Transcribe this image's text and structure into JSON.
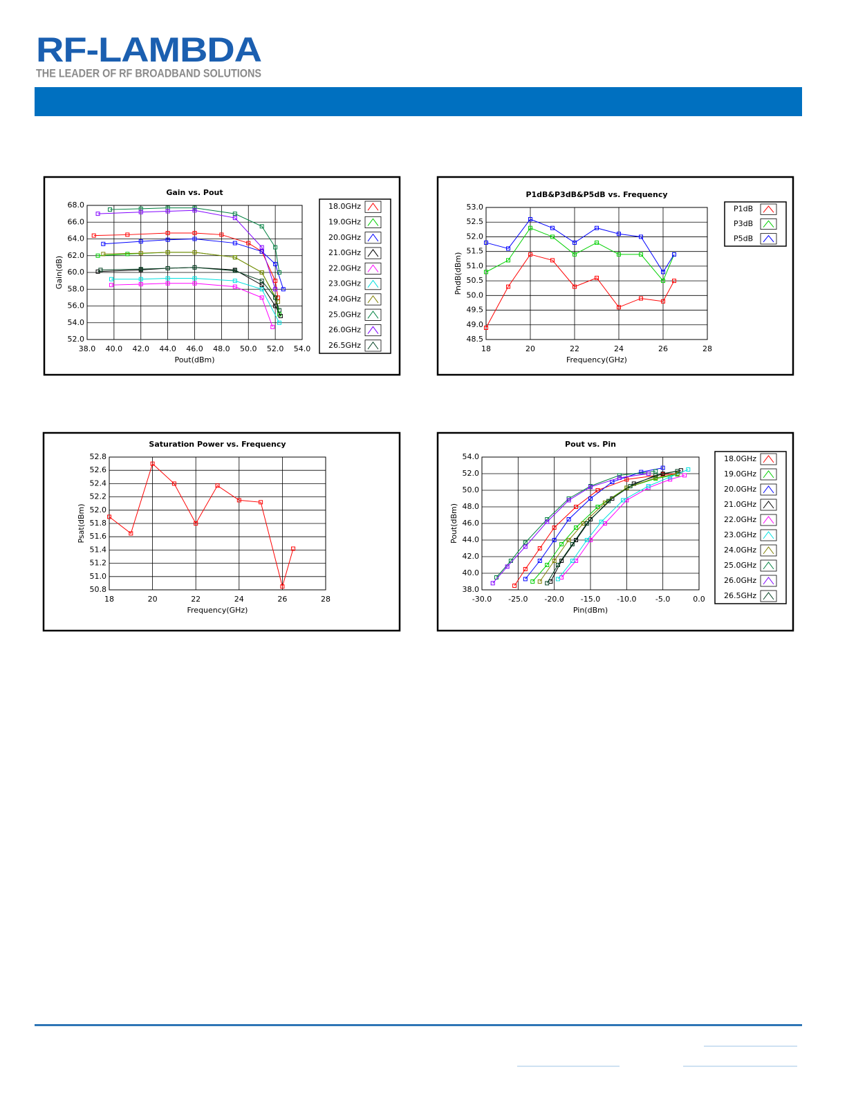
{
  "header": {
    "logo": "RF-LAMBDA",
    "tagline": "THE LEADER OF RF BROADBAND SOLUTIONS"
  },
  "chart_data": [
    {
      "type": "line",
      "title": "Gain vs. Pout",
      "xlabel": "Pout(dBm)",
      "ylabel": "Gain(dB)",
      "xlim": [
        38,
        54
      ],
      "xticks": [
        {
          "value": 38,
          "label": "38.0"
        },
        {
          "value": 40,
          "label": "40.0"
        },
        {
          "value": 42,
          "label": "42.0"
        },
        {
          "value": 44,
          "label": "44.0"
        },
        {
          "value": 46,
          "label": "46.0"
        },
        {
          "value": 48,
          "label": "48.0"
        },
        {
          "value": 50,
          "label": "50.0"
        },
        {
          "value": 52,
          "label": "52.0"
        },
        {
          "value": 54,
          "label": "54.0"
        }
      ],
      "ylim": [
        52,
        68
      ],
      "yticks": [
        {
          "value": 52,
          "label": "52.0"
        },
        {
          "value": 54,
          "label": "54.0"
        },
        {
          "value": 56,
          "label": "56.0"
        },
        {
          "value": 58,
          "label": "58.0"
        },
        {
          "value": 60,
          "label": "60.0"
        },
        {
          "value": 62,
          "label": "62.0"
        },
        {
          "value": 64,
          "label": "64.0"
        },
        {
          "value": 66,
          "label": "66.0"
        },
        {
          "value": 68,
          "label": "68.0"
        }
      ],
      "grid": true,
      "series": [
        {
          "name": "18.0GHz",
          "color": "#ff0000",
          "x": [
            38.5,
            41,
            44,
            46,
            48,
            50,
            51,
            52,
            52.2
          ],
          "values": [
            64.4,
            64.5,
            64.7,
            64.7,
            64.5,
            63.5,
            62.5,
            59,
            57
          ]
        },
        {
          "name": "19.0GHz",
          "color": "#00d000",
          "x": [
            38.8,
            41,
            44,
            46,
            49,
            51,
            52,
            52.3
          ],
          "values": [
            62.0,
            62.2,
            62.4,
            62.4,
            61.8,
            60,
            57,
            55
          ]
        },
        {
          "name": "20.0GHz",
          "color": "#0000ff",
          "x": [
            39.2,
            42,
            44,
            46,
            49,
            51,
            52,
            52.6
          ],
          "values": [
            63.4,
            63.7,
            63.9,
            64.0,
            63.5,
            62.5,
            61,
            58
          ]
        },
        {
          "name": "21.0GHz",
          "color": "#000000",
          "x": [
            38.8,
            42,
            44,
            46,
            49,
            51,
            52,
            52.4
          ],
          "values": [
            60.1,
            60.3,
            60.5,
            60.6,
            60.3,
            58.5,
            56,
            54.8
          ]
        },
        {
          "name": "22.0GHz",
          "color": "#ff00ff",
          "x": [
            39.8,
            42,
            44,
            46,
            49,
            51,
            51.8
          ],
          "values": [
            58.5,
            58.6,
            58.7,
            58.7,
            58.3,
            57,
            53.5
          ]
        },
        {
          "name": "23.0GHz",
          "color": "#00e0e0",
          "x": [
            39.8,
            42,
            44,
            46,
            49,
            51,
            52.3
          ],
          "values": [
            59.2,
            59.2,
            59.3,
            59.3,
            59,
            58,
            54
          ]
        },
        {
          "name": "24.0GHz",
          "color": "#808000",
          "x": [
            39.2,
            42,
            44,
            46,
            49,
            51,
            52.2
          ],
          "values": [
            62.2,
            62.3,
            62.4,
            62.4,
            61.8,
            60,
            56.5
          ]
        },
        {
          "name": "25.0GHz",
          "color": "#008040",
          "x": [
            39.7,
            42,
            44,
            46,
            49,
            51,
            52,
            52.3
          ],
          "values": [
            67.5,
            67.6,
            67.7,
            67.7,
            67.0,
            65.5,
            63,
            60
          ]
        },
        {
          "name": "26.0GHz",
          "color": "#8000ff",
          "x": [
            38.8,
            42,
            44,
            46,
            49,
            51,
            52
          ],
          "values": [
            67.0,
            67.2,
            67.3,
            67.4,
            66.5,
            63,
            58
          ]
        },
        {
          "name": "26.5GHz",
          "color": "#004020",
          "x": [
            39,
            42,
            44,
            46,
            49,
            51,
            52,
            52.3
          ],
          "values": [
            60.3,
            60.4,
            60.5,
            60.6,
            60.2,
            59,
            57,
            55.5
          ]
        }
      ]
    },
    {
      "type": "line",
      "title": "P1dB&P3dB&P5dB vs. Frequency",
      "xlabel": "Frequency(GHz)",
      "ylabel": "PndB(dBm)",
      "x": [
        18,
        19,
        20,
        21,
        22,
        23,
        24,
        25,
        26,
        26.5
      ],
      "xlim": [
        18,
        28
      ],
      "xticks": [
        18,
        20,
        22,
        24,
        26,
        28
      ],
      "ylim": [
        48.5,
        53
      ],
      "yticks": [
        48.5,
        {
          "value": 49,
          "label": "49.0"
        },
        49.5,
        {
          "value": 50,
          "label": "50.0"
        },
        50.5,
        {
          "value": 51,
          "label": "51.0"
        },
        51.5,
        {
          "value": 52,
          "label": "52.0"
        },
        52.5,
        {
          "value": 53,
          "label": "53.0"
        }
      ],
      "grid": true,
      "series": [
        {
          "name": "P1dB",
          "color": "#ff0000",
          "values": [
            48.9,
            50.3,
            51.4,
            51.2,
            50.3,
            50.6,
            49.6,
            49.9,
            49.8,
            50.5
          ]
        },
        {
          "name": "P3dB",
          "color": "#00d000",
          "values": [
            50.8,
            51.2,
            52.3,
            52.0,
            51.4,
            51.8,
            51.4,
            51.4,
            50.5,
            51.4
          ]
        },
        {
          "name": "P5dB",
          "color": "#0000ff",
          "values": [
            51.8,
            51.6,
            52.6,
            52.3,
            51.8,
            52.3,
            52.1,
            52.0,
            50.8,
            51.4
          ]
        }
      ]
    },
    {
      "type": "line",
      "title": "Saturation Power vs. Frequency",
      "xlabel": "Frequency(GHz)",
      "ylabel": "Psat(dBm)",
      "x": [
        18,
        19,
        20,
        21,
        22,
        23,
        24,
        25,
        26,
        26.5
      ],
      "xlim": [
        18,
        28
      ],
      "xticks": [
        18,
        20,
        22,
        24,
        26,
        28
      ],
      "ylim": [
        50.8,
        52.8
      ],
      "yticks": [
        50.8,
        {
          "value": 51,
          "label": "51.0"
        },
        51.2,
        51.4,
        51.6,
        51.8,
        {
          "value": 52,
          "label": "52.0"
        },
        52.2,
        52.4,
        52.6,
        52.8
      ],
      "grid": true,
      "color": "#ff0000",
      "values": [
        51.9,
        51.65,
        52.7,
        52.4,
        51.8,
        52.37,
        52.15,
        52.12,
        50.85,
        51.42
      ]
    },
    {
      "type": "line",
      "title": "Pout vs. Pin",
      "xlabel": "Pin(dBm)",
      "ylabel": "Pout(dBm)",
      "xlim": [
        -30,
        0
      ],
      "xticks": [
        {
          "value": -30,
          "label": "-30.0"
        },
        {
          "value": -25,
          "label": "-25.0"
        },
        {
          "value": -20,
          "label": "-20.0"
        },
        {
          "value": -15,
          "label": "-15.0"
        },
        {
          "value": -10,
          "label": "-10.0"
        },
        {
          "value": -5,
          "label": "-5.0"
        },
        {
          "value": 0,
          "label": "0.0"
        }
      ],
      "ylim": [
        38,
        54
      ],
      "yticks": [
        {
          "value": 38,
          "label": "38.0"
        },
        {
          "value": 40,
          "label": "40.0"
        },
        {
          "value": 42,
          "label": "42.0"
        },
        {
          "value": 44,
          "label": "44.0"
        },
        {
          "value": 46,
          "label": "46.0"
        },
        {
          "value": 48,
          "label": "48.0"
        },
        {
          "value": 50,
          "label": "50.0"
        },
        {
          "value": 52,
          "label": "52.0"
        },
        {
          "value": 54,
          "label": "54.0"
        }
      ],
      "grid": true,
      "series": [
        {
          "name": "18.0GHz",
          "color": "#ff0000",
          "x": [
            -25.5,
            -24,
            -22,
            -20,
            -17,
            -14,
            -10,
            -5,
            -3
          ],
          "values": [
            38.5,
            40.5,
            43,
            45.5,
            48,
            50,
            51.3,
            51.9,
            52.0
          ]
        },
        {
          "name": "19.0GHz",
          "color": "#00d000",
          "x": [
            -23,
            -21,
            -19,
            -17,
            -14,
            -10,
            -6,
            -3
          ],
          "values": [
            39,
            41,
            43.5,
            45.5,
            48,
            50.3,
            51.4,
            51.9
          ]
        },
        {
          "name": "20.0GHz",
          "color": "#0000ff",
          "x": [
            -24,
            -22,
            -20,
            -18,
            -15,
            -12,
            -8,
            -5
          ],
          "values": [
            39.3,
            41.5,
            44,
            46.5,
            49,
            51,
            52.2,
            52.7
          ]
        },
        {
          "name": "21.0GHz",
          "color": "#000000",
          "x": [
            -20.5,
            -19,
            -17,
            -15,
            -12,
            -9,
            -5,
            -2.5
          ],
          "values": [
            39,
            41.5,
            44,
            46.5,
            49,
            50.8,
            52,
            52.4
          ]
        },
        {
          "name": "22.0GHz",
          "color": "#ff00ff",
          "x": [
            -19,
            -17,
            -15,
            -13,
            -10,
            -7,
            -4,
            -2
          ],
          "values": [
            39.5,
            41.5,
            44,
            46,
            48.8,
            50.3,
            51.3,
            51.8
          ]
        },
        {
          "name": "23.0GHz",
          "color": "#00e0e0",
          "x": [
            -19.5,
            -17.5,
            -15.5,
            -13.5,
            -10.5,
            -7,
            -4,
            -1.5
          ],
          "values": [
            39.3,
            41.5,
            44,
            46.2,
            48.8,
            50.5,
            51.6,
            52.5
          ]
        },
        {
          "name": "24.0GHz",
          "color": "#808000",
          "x": [
            -22,
            -20,
            -18,
            -16,
            -13,
            -10,
            -6,
            -3
          ],
          "values": [
            39,
            41.5,
            44,
            46,
            48.5,
            50.3,
            51.5,
            52
          ]
        },
        {
          "name": "25.0GHz",
          "color": "#008040",
          "x": [
            -28,
            -26,
            -24,
            -21,
            -18,
            -15,
            -11,
            -6
          ],
          "values": [
            39.5,
            41.5,
            43.7,
            46.5,
            49,
            50.5,
            51.8,
            52.3
          ]
        },
        {
          "name": "26.0GHz",
          "color": "#8000ff",
          "x": [
            -28.5,
            -26.5,
            -24,
            -21,
            -18,
            -15,
            -11,
            -7
          ],
          "values": [
            38.8,
            40.8,
            43.2,
            46.2,
            48.8,
            50.4,
            51.5,
            52
          ]
        },
        {
          "name": "26.5GHz",
          "color": "#004020",
          "x": [
            -21,
            -19.5,
            -17.5,
            -15.5,
            -12.5,
            -9.5,
            -6,
            -3
          ],
          "values": [
            38.8,
            41,
            43.5,
            46,
            48.7,
            50.5,
            51.8,
            52.3
          ]
        }
      ]
    }
  ]
}
